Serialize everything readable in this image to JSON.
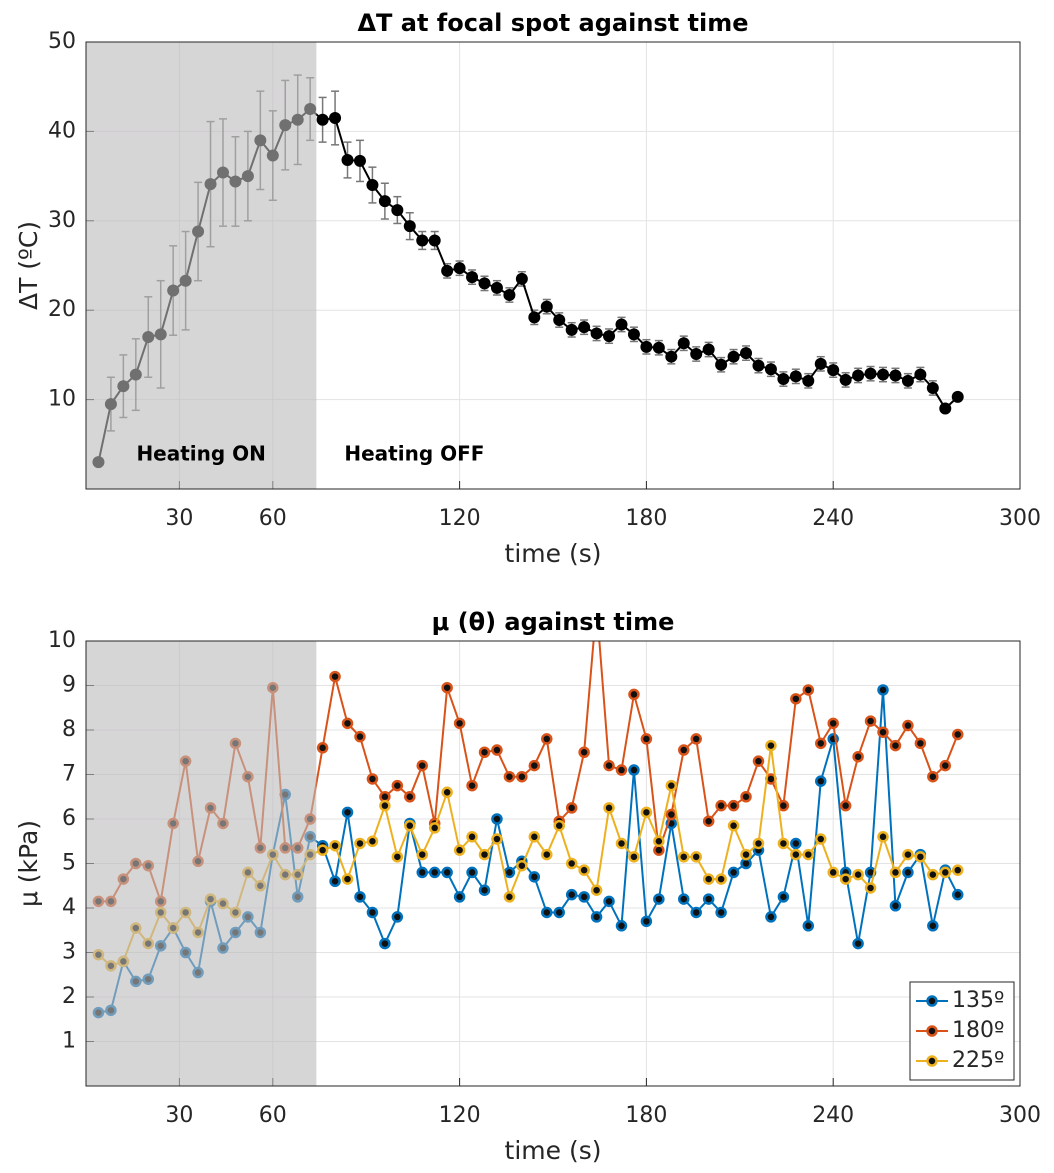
{
  "chart_data": [
    {
      "type": "line",
      "title": "ΔT at focal spot against time",
      "xlabel": "time (s)",
      "ylabel": "ΔT (ºC)",
      "x": [
        4,
        8,
        12,
        16,
        20,
        24,
        28,
        32,
        36,
        40,
        44,
        48,
        52,
        56,
        60,
        64,
        68,
        72,
        76,
        80,
        84,
        88,
        92,
        96,
        100,
        104,
        108,
        112,
        116,
        120,
        124,
        128,
        132,
        136,
        140,
        144,
        148,
        152,
        156,
        160,
        164,
        168,
        172,
        176,
        180,
        184,
        188,
        192,
        196,
        200,
        204,
        208,
        212,
        216,
        220,
        224,
        228,
        232,
        236,
        240,
        244,
        248,
        252,
        256,
        260,
        264,
        268,
        272,
        276,
        280
      ],
      "series": [
        {
          "color": "#000000",
          "values": [
            3,
            9.5,
            11.5,
            12.8,
            17,
            17.3,
            22.2,
            23.3,
            28.8,
            34.1,
            35.4,
            34.4,
            35,
            39,
            37.3,
            40.7,
            41.3,
            42.5,
            41.3,
            41.5,
            36.8,
            36.7,
            34,
            32.2,
            31.2,
            29.4,
            27.8,
            27.8,
            24.4,
            24.7,
            23.7,
            23,
            22.5,
            21.7,
            23.5,
            19.2,
            20.4,
            18.9,
            17.8,
            18.1,
            17.4,
            17.1,
            18.4,
            17.3,
            15.9,
            15.8,
            14.8,
            16.3,
            15.1,
            15.6,
            13.9,
            14.8,
            15.2,
            13.8,
            13.4,
            12.3,
            12.6,
            12.1,
            14,
            13.3,
            12.2,
            12.7,
            12.9,
            12.8,
            12.7,
            12.1,
            12.8,
            11.3,
            9,
            10.3
          ],
          "errors": [
            0,
            3,
            3.5,
            4,
            4.5,
            6,
            5,
            5.5,
            5.5,
            7,
            6,
            5,
            5,
            5.5,
            5,
            5,
            5,
            3.5,
            2.5,
            3,
            2,
            2.3,
            2,
            2,
            1.5,
            1.5,
            1,
            1,
            0.8,
            0.8,
            0.8,
            0.8,
            0.8,
            0.8,
            0.8,
            0.8,
            0.8,
            0.8,
            0.8,
            0.8,
            0.8,
            0.8,
            0.8,
            0.8,
            0.8,
            0.8,
            0.8,
            0.8,
            0.8,
            0.8,
            0.8,
            0.8,
            0.8,
            0.8,
            0.8,
            0.8,
            0.8,
            0.8,
            0.8,
            0.8,
            0.8,
            0.8,
            0.8,
            0.8,
            0.8,
            0.8,
            0.8,
            0.8,
            0,
            0
          ]
        }
      ],
      "xlim": [
        0,
        300
      ],
      "ylim": [
        0,
        50
      ],
      "xticks": [
        30,
        60,
        120,
        180,
        240,
        300
      ],
      "yticks": [
        10,
        20,
        30,
        40,
        50
      ],
      "grid": true,
      "shaded_x": [
        0,
        74
      ],
      "annotations": [
        "Heating ON",
        "Heating OFF"
      ]
    },
    {
      "type": "line",
      "title": "μ (θ) against time",
      "xlabel": "time (s)",
      "ylabel": "μ (kPa)",
      "x": [
        4,
        8,
        12,
        16,
        20,
        24,
        28,
        32,
        36,
        40,
        44,
        48,
        52,
        56,
        60,
        64,
        68,
        72,
        76,
        80,
        84,
        88,
        92,
        96,
        100,
        104,
        108,
        112,
        116,
        120,
        124,
        128,
        132,
        136,
        140,
        144,
        148,
        152,
        156,
        160,
        164,
        168,
        172,
        176,
        180,
        184,
        188,
        192,
        196,
        200,
        204,
        208,
        212,
        216,
        220,
        224,
        228,
        232,
        236,
        240,
        244,
        248,
        252,
        256,
        260,
        264,
        268,
        272,
        276,
        280
      ],
      "series": [
        {
          "name": "135º",
          "color": "#0072BD",
          "values": [
            1.65,
            1.7,
            2.8,
            2.35,
            2.4,
            3.15,
            3.55,
            3.0,
            2.55,
            4.15,
            3.1,
            3.45,
            3.8,
            3.45,
            5.2,
            6.55,
            4.25,
            5.6,
            5.4,
            4.6,
            6.15,
            4.25,
            3.9,
            3.2,
            3.8,
            5.9,
            4.8,
            4.8,
            4.8,
            4.25,
            4.8,
            4.4,
            6.0,
            4.8,
            5.05,
            4.7,
            3.9,
            3.9,
            4.3,
            4.25,
            3.8,
            4.15,
            3.6,
            7.1,
            3.7,
            4.2,
            5.9,
            4.2,
            3.9,
            4.2,
            3.9,
            4.8,
            5.0,
            5.3,
            3.8,
            4.25,
            5.45,
            3.6,
            6.85,
            7.8,
            4.8,
            3.2,
            4.8,
            8.9,
            4.05,
            4.8,
            5.2,
            3.6,
            4.85,
            4.3
          ]
        },
        {
          "name": "180º",
          "color": "#D95319",
          "values": [
            4.15,
            4.15,
            4.65,
            5.0,
            4.95,
            4.15,
            5.9,
            7.3,
            5.05,
            6.25,
            5.9,
            7.7,
            6.95,
            5.35,
            8.95,
            5.35,
            5.35,
            6.0,
            7.6,
            9.2,
            8.15,
            7.85,
            6.9,
            6.5,
            6.75,
            6.5,
            7.2,
            5.9,
            8.95,
            8.15,
            6.75,
            7.5,
            7.55,
            6.95,
            6.95,
            7.2,
            7.8,
            5.95,
            6.25,
            7.5,
            10.8,
            7.2,
            7.1,
            8.8,
            7.8,
            5.3,
            6.1,
            7.55,
            7.8,
            5.95,
            6.3,
            6.3,
            6.5,
            7.3,
            6.9,
            6.3,
            8.7,
            8.9,
            7.7,
            8.15,
            6.3,
            7.4,
            8.2,
            7.95,
            7.65,
            8.1,
            7.7,
            6.95,
            7.2,
            7.9
          ]
        },
        {
          "name": "225º",
          "color": "#EDB120",
          "values": [
            2.95,
            2.7,
            2.8,
            3.55,
            3.2,
            3.9,
            3.55,
            3.9,
            3.45,
            4.2,
            4.1,
            3.9,
            4.8,
            4.5,
            5.2,
            4.75,
            4.75,
            5.2,
            5.3,
            5.4,
            4.65,
            5.45,
            5.5,
            6.3,
            5.15,
            5.85,
            5.2,
            5.8,
            6.6,
            5.3,
            5.6,
            5.2,
            5.55,
            4.25,
            4.95,
            5.6,
            5.2,
            5.85,
            5.0,
            4.85,
            4.4,
            6.25,
            5.45,
            5.15,
            6.15,
            5.5,
            6.75,
            5.15,
            5.15,
            4.65,
            4.65,
            5.85,
            5.2,
            5.45,
            7.65,
            5.45,
            5.2,
            5.2,
            5.55,
            4.8,
            4.65,
            4.75,
            4.45,
            5.6,
            4.8,
            5.2,
            5.15,
            4.75,
            4.8,
            4.85
          ]
        }
      ],
      "xlim": [
        0,
        300
      ],
      "ylim": [
        0,
        10
      ],
      "xticks": [
        30,
        60,
        120,
        180,
        240,
        300
      ],
      "yticks": [
        1,
        2,
        3,
        4,
        5,
        6,
        7,
        8,
        9,
        10
      ],
      "grid": true,
      "shaded_x": [
        0,
        74
      ],
      "legend": "lower right"
    }
  ]
}
